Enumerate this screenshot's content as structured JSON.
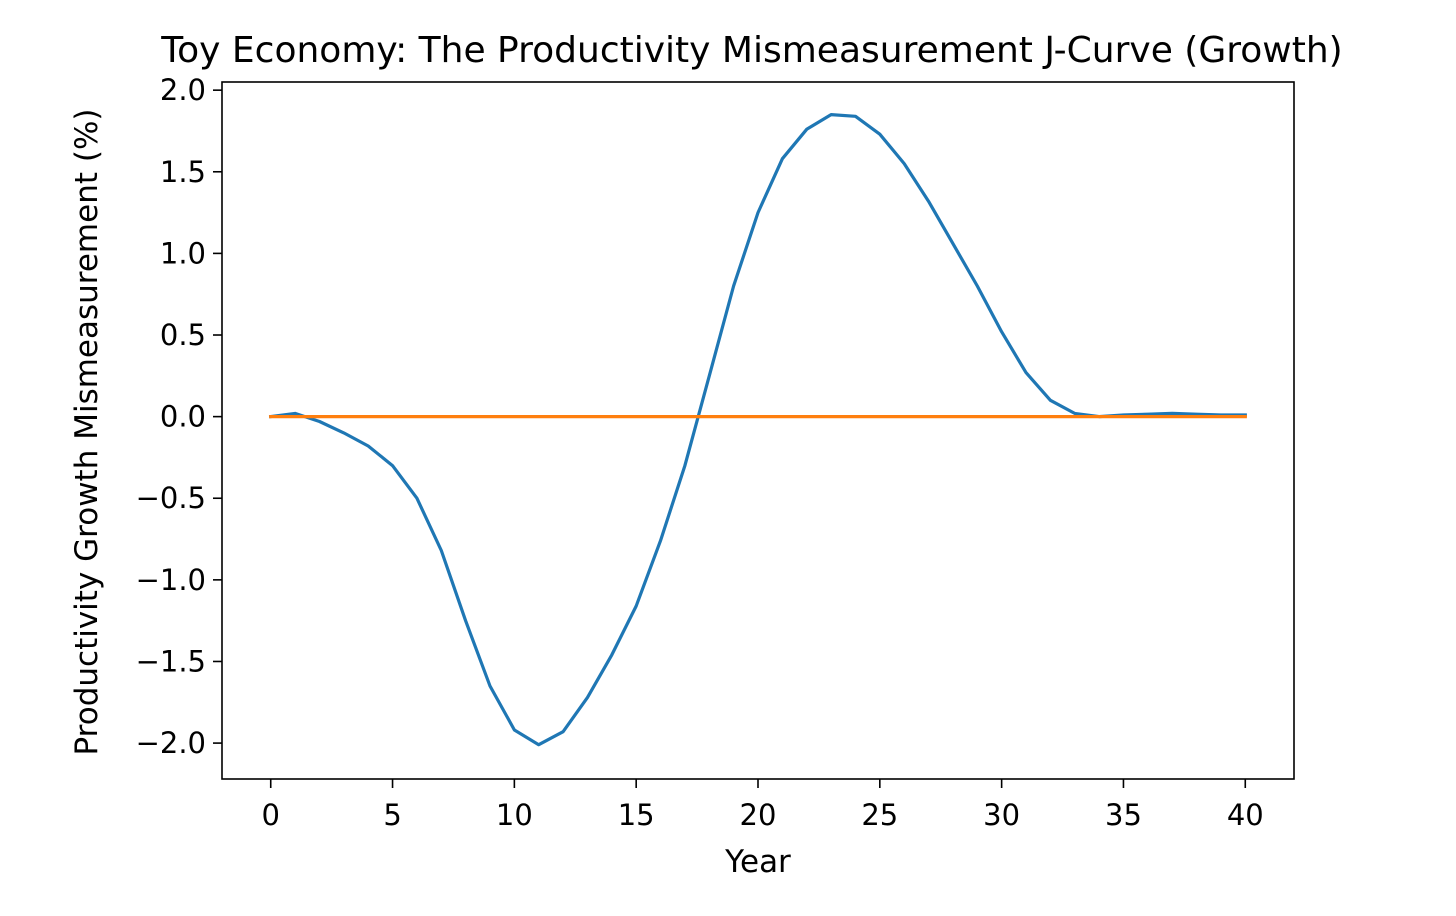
{
  "chart_data": {
    "type": "line",
    "title": "Toy Economy: The Productivity Mismeasurement J-Curve (Growth)",
    "xlabel": "Year",
    "ylabel": "Productivity Growth Mismeasurement (%)",
    "xlim": [
      -2,
      42
    ],
    "ylim": [
      -2.22,
      2.05
    ],
    "xticks": [
      0,
      5,
      10,
      15,
      20,
      25,
      30,
      35,
      40
    ],
    "xtick_labels": [
      "0",
      "5",
      "10",
      "15",
      "20",
      "25",
      "30",
      "35",
      "40"
    ],
    "yticks": [
      2.0,
      1.5,
      1.0,
      0.5,
      0.0,
      -0.5,
      -1.0,
      -1.5,
      -2.0
    ],
    "ytick_labels": [
      "2.0",
      "1.5",
      "1.0",
      "0.5",
      "0.0",
      "−0.5",
      "−1.0",
      "−1.5",
      "−2.0"
    ],
    "grid": false,
    "legend": false,
    "series": [
      {
        "color": "#1f77b4",
        "x": [
          0,
          1,
          2,
          3,
          4,
          5,
          6,
          7,
          8,
          9,
          10,
          11,
          12,
          13,
          14,
          15,
          16,
          17,
          18,
          19,
          20,
          21,
          22,
          23,
          24,
          25,
          26,
          27,
          28,
          29,
          30,
          31,
          32,
          33,
          34,
          35,
          36,
          37,
          38,
          39,
          40
        ],
        "values": [
          0.0,
          0.02,
          -0.03,
          -0.1,
          -0.18,
          -0.3,
          -0.5,
          -0.82,
          -1.25,
          -1.65,
          -1.92,
          -2.01,
          -1.93,
          -1.72,
          -1.46,
          -1.16,
          -0.76,
          -0.3,
          0.25,
          0.8,
          1.25,
          1.58,
          1.76,
          1.85,
          1.84,
          1.73,
          1.55,
          1.32,
          1.06,
          0.8,
          0.52,
          0.27,
          0.1,
          0.02,
          0.0,
          0.01,
          0.015,
          0.02,
          0.015,
          0.01,
          0.01
        ]
      },
      {
        "color": "#ff7f0e",
        "x": [
          0,
          40
        ],
        "values": [
          0.0,
          0.0
        ]
      }
    ]
  }
}
